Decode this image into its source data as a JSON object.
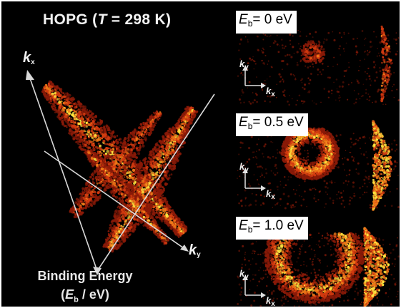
{
  "title": {
    "prefix": "HOPG (",
    "variable": "T",
    "suffix": " = 298 K)"
  },
  "axes": {
    "kx_main": "k",
    "kx_main_sub": "x",
    "ky_main": "k",
    "ky_main_sub": "y",
    "small_y": "k",
    "small_y_sub": "y",
    "small_x": "k",
    "small_x_sub": "x"
  },
  "binding_energy": {
    "line1": "Binding Energy",
    "line2_open": "(",
    "line2_var": "E",
    "line2_sub": "b",
    "line2_close": " / eV)"
  },
  "panels": [
    {
      "var": "E",
      "sub": "b",
      "value": "= 0 eV"
    },
    {
      "var": "E",
      "sub": "b",
      "value": "= 0.5 eV"
    },
    {
      "var": "E",
      "sub": "b",
      "value": "= 1.0 eV"
    }
  ],
  "colors": {
    "background": "#000000",
    "dark_red": "#8a1a08",
    "red": "#d23a10",
    "orange": "#f07a18",
    "yellow": "#ffe640",
    "axis_line": "#d8d8d8"
  }
}
